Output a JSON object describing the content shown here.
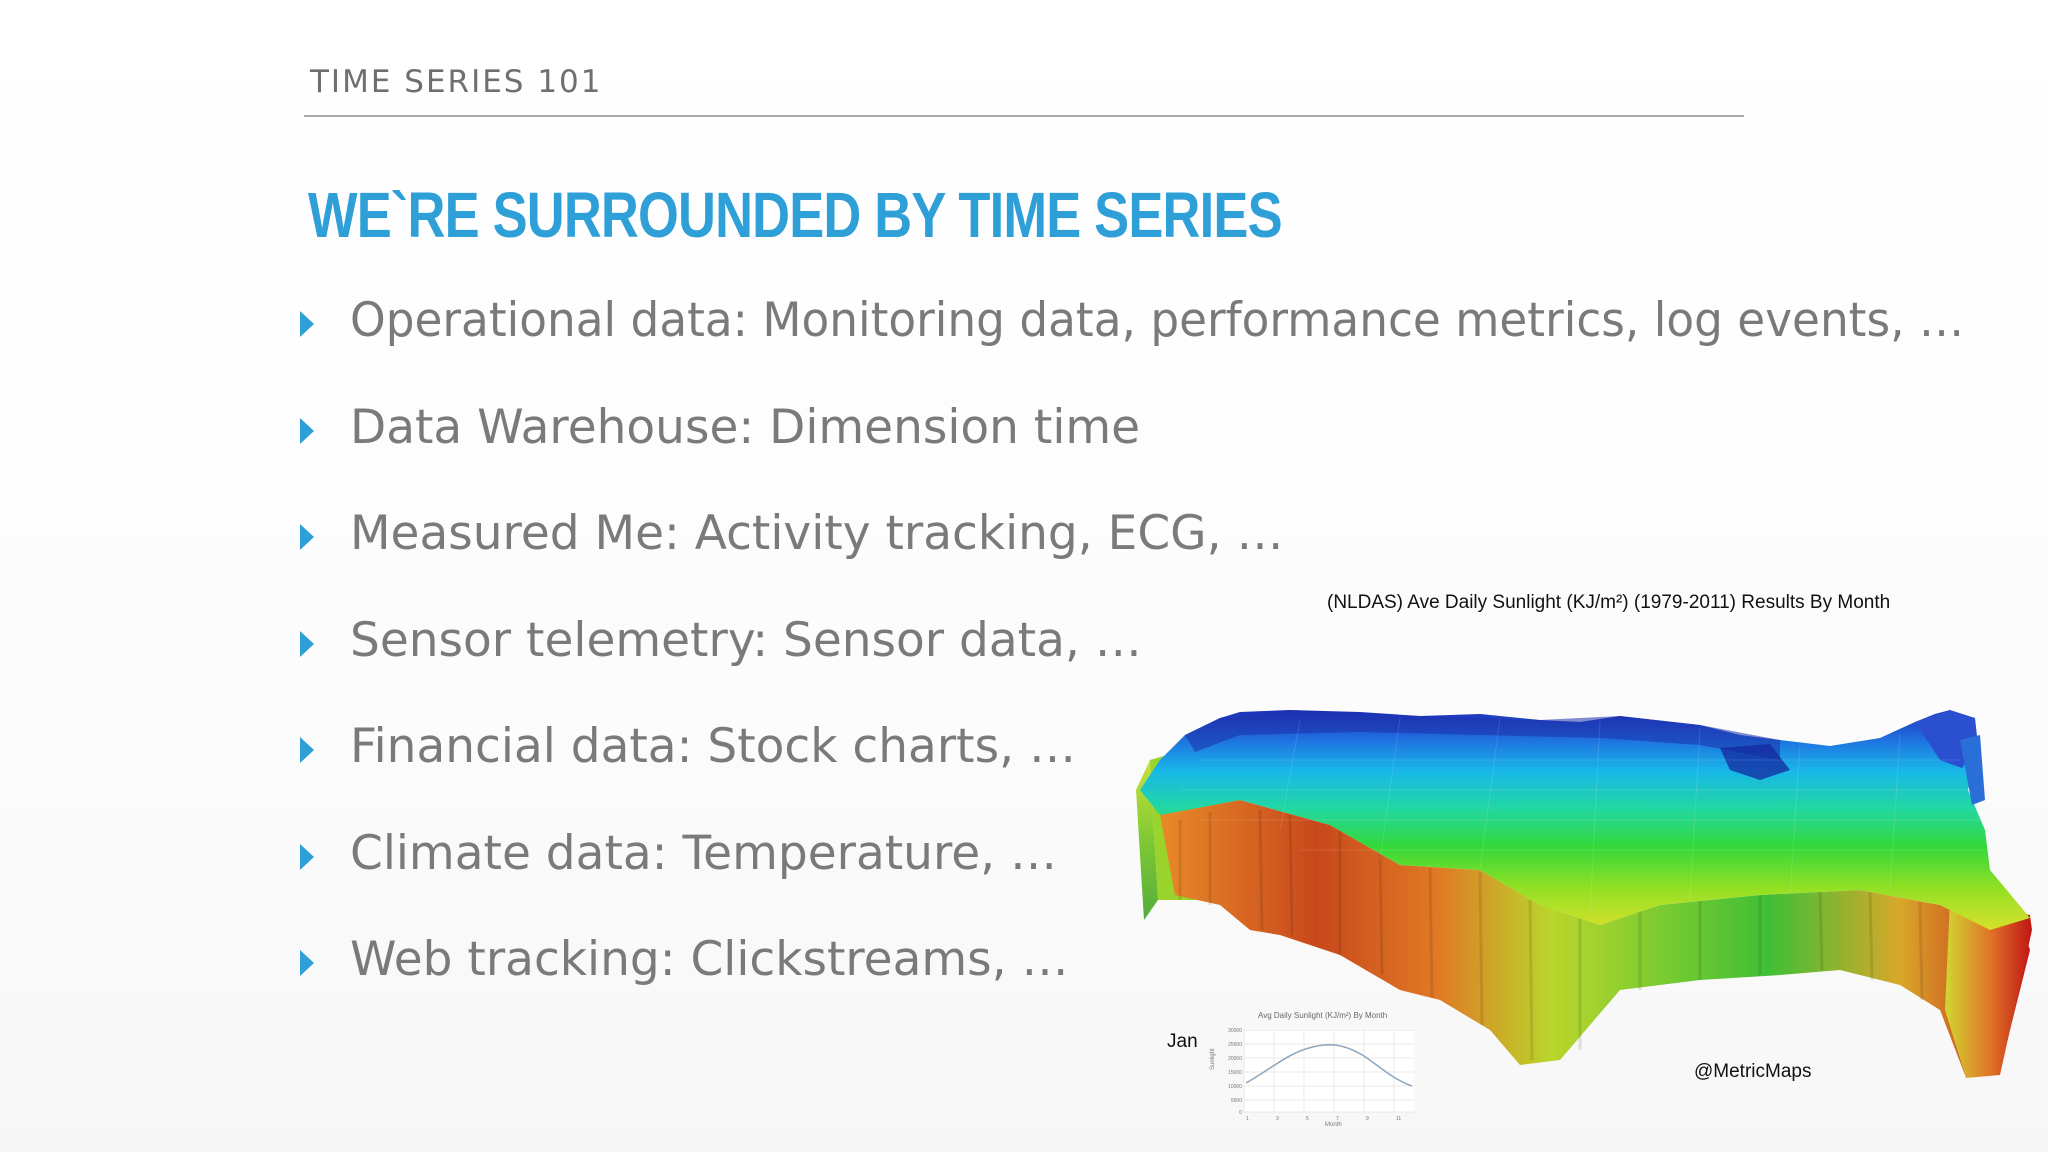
{
  "slide": {
    "section": "TIME SERIES 101",
    "title": "WE`RE SURROUNDED BY TIME SERIES"
  },
  "colors": {
    "accent": "#2f9fd8",
    "body_text": "#7a7a7a",
    "header_text": "#6f6f6f"
  },
  "bullets": [
    {
      "text": "Operational data: Monitoring data, performance metrics, log events, …"
    },
    {
      "text": "Data Warehouse: Dimension time"
    },
    {
      "text": "Measured Me: Activity tracking, ECG, …"
    },
    {
      "text": "Sensor telemetry: Sensor data, …"
    },
    {
      "text": "Financial data: Stock charts, …"
    },
    {
      "text": "Climate data: Temperature, …"
    },
    {
      "text": "Web tracking: Clickstreams, …"
    }
  ],
  "figure": {
    "caption": "(NLDAS) Ave Daily Sunlight (KJ/m²) (1979-2011) Results By Month",
    "month": "Jan",
    "credit": "@MetricMaps",
    "mini_chart": {
      "title": "Avg Daily Sunlight (KJ/m²) By Month",
      "ylabel": "Sunlight",
      "xlabel": "Month",
      "yticks": [
        "30000",
        "25000",
        "20000",
        "15000",
        "10000",
        "5000",
        "0"
      ],
      "xticks": [
        "1",
        "3",
        "5",
        "7",
        "9",
        "11"
      ]
    }
  }
}
